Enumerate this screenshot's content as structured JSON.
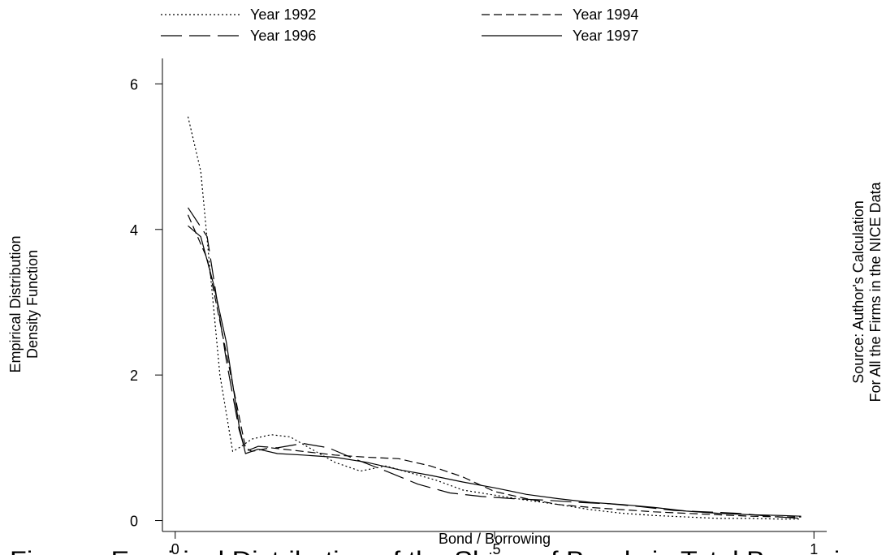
{
  "chart_data": {
    "type": "line",
    "title": "",
    "xlabel": "Bond / Borrowing",
    "ylabel_lines": [
      "Empirical Distribution",
      "Density Function"
    ],
    "note_lines": [
      "Source: Author's Calculation",
      "For All the Firms in the NICE Data"
    ],
    "caption_fragment": "Figure . Empirical Distribution of the Share of Bonds in Total Borrowing",
    "xlim": [
      -0.02,
      1.02
    ],
    "ylim": [
      -0.15,
      6.35
    ],
    "x_ticks": [
      {
        "value": 0,
        "label": "0"
      },
      {
        "value": 0.5,
        "label": ".5"
      },
      {
        "value": 1,
        "label": "1"
      }
    ],
    "y_ticks": [
      {
        "value": 0,
        "label": "0"
      },
      {
        "value": 2,
        "label": "2"
      },
      {
        "value": 4,
        "label": "4"
      },
      {
        "value": 6,
        "label": "6"
      }
    ],
    "grid": false,
    "legend_position": "top",
    "series": [
      {
        "name": "Year 1992",
        "dash": "dotted",
        "color": "#000000",
        "x": [
          0.02,
          0.04,
          0.07,
          0.09,
          0.1,
          0.12,
          0.15,
          0.18,
          0.21,
          0.25,
          0.29,
          0.33,
          0.37,
          0.41,
          0.45,
          0.5,
          0.55,
          0.6,
          0.65,
          0.7,
          0.75,
          0.8,
          0.85,
          0.9,
          0.95,
          0.98
        ],
        "y": [
          5.55,
          4.8,
          2.0,
          0.95,
          1.0,
          1.12,
          1.18,
          1.15,
          1.0,
          0.8,
          0.68,
          0.75,
          0.65,
          0.55,
          0.42,
          0.35,
          0.28,
          0.22,
          0.15,
          0.1,
          0.07,
          0.05,
          0.03,
          0.03,
          0.02,
          0.02
        ]
      },
      {
        "name": "Year 1994",
        "dash": "short-dash",
        "color": "#000000",
        "x": [
          0.02,
          0.05,
          0.08,
          0.11,
          0.12,
          0.15,
          0.2,
          0.25,
          0.3,
          0.35,
          0.4,
          0.45,
          0.5,
          0.55,
          0.6,
          0.65,
          0.7,
          0.75,
          0.8,
          0.85,
          0.9,
          0.95,
          0.98
        ],
        "y": [
          4.2,
          3.6,
          2.3,
          1.0,
          0.95,
          1.0,
          0.95,
          0.9,
          0.87,
          0.85,
          0.75,
          0.6,
          0.4,
          0.3,
          0.22,
          0.18,
          0.15,
          0.12,
          0.1,
          0.08,
          0.06,
          0.05,
          0.05
        ]
      },
      {
        "name": "Year 1996",
        "dash": "long-dash",
        "color": "#000000",
        "x": [
          0.02,
          0.05,
          0.08,
          0.1,
          0.11,
          0.13,
          0.16,
          0.2,
          0.24,
          0.28,
          0.33,
          0.38,
          0.43,
          0.48,
          0.53,
          0.58,
          0.63,
          0.68,
          0.73,
          0.78,
          0.83,
          0.88,
          0.93,
          0.98
        ],
        "y": [
          4.3,
          3.9,
          2.2,
          1.25,
          0.95,
          1.02,
          1.0,
          1.06,
          1.0,
          0.85,
          0.68,
          0.5,
          0.38,
          0.33,
          0.3,
          0.28,
          0.25,
          0.23,
          0.19,
          0.14,
          0.12,
          0.1,
          0.06,
          0.03
        ]
      },
      {
        "name": "Year 1997",
        "dash": "solid",
        "color": "#000000",
        "x": [
          0.02,
          0.04,
          0.06,
          0.08,
          0.1,
          0.11,
          0.13,
          0.16,
          0.2,
          0.25,
          0.3,
          0.35,
          0.4,
          0.45,
          0.5,
          0.55,
          0.6,
          0.65,
          0.7,
          0.75,
          0.8,
          0.85,
          0.9,
          0.95,
          0.98
        ],
        "y": [
          4.05,
          3.9,
          3.25,
          2.45,
          1.3,
          0.92,
          0.98,
          0.92,
          0.9,
          0.87,
          0.8,
          0.7,
          0.62,
          0.53,
          0.45,
          0.36,
          0.3,
          0.25,
          0.22,
          0.18,
          0.13,
          0.1,
          0.08,
          0.07,
          0.06
        ]
      }
    ]
  }
}
